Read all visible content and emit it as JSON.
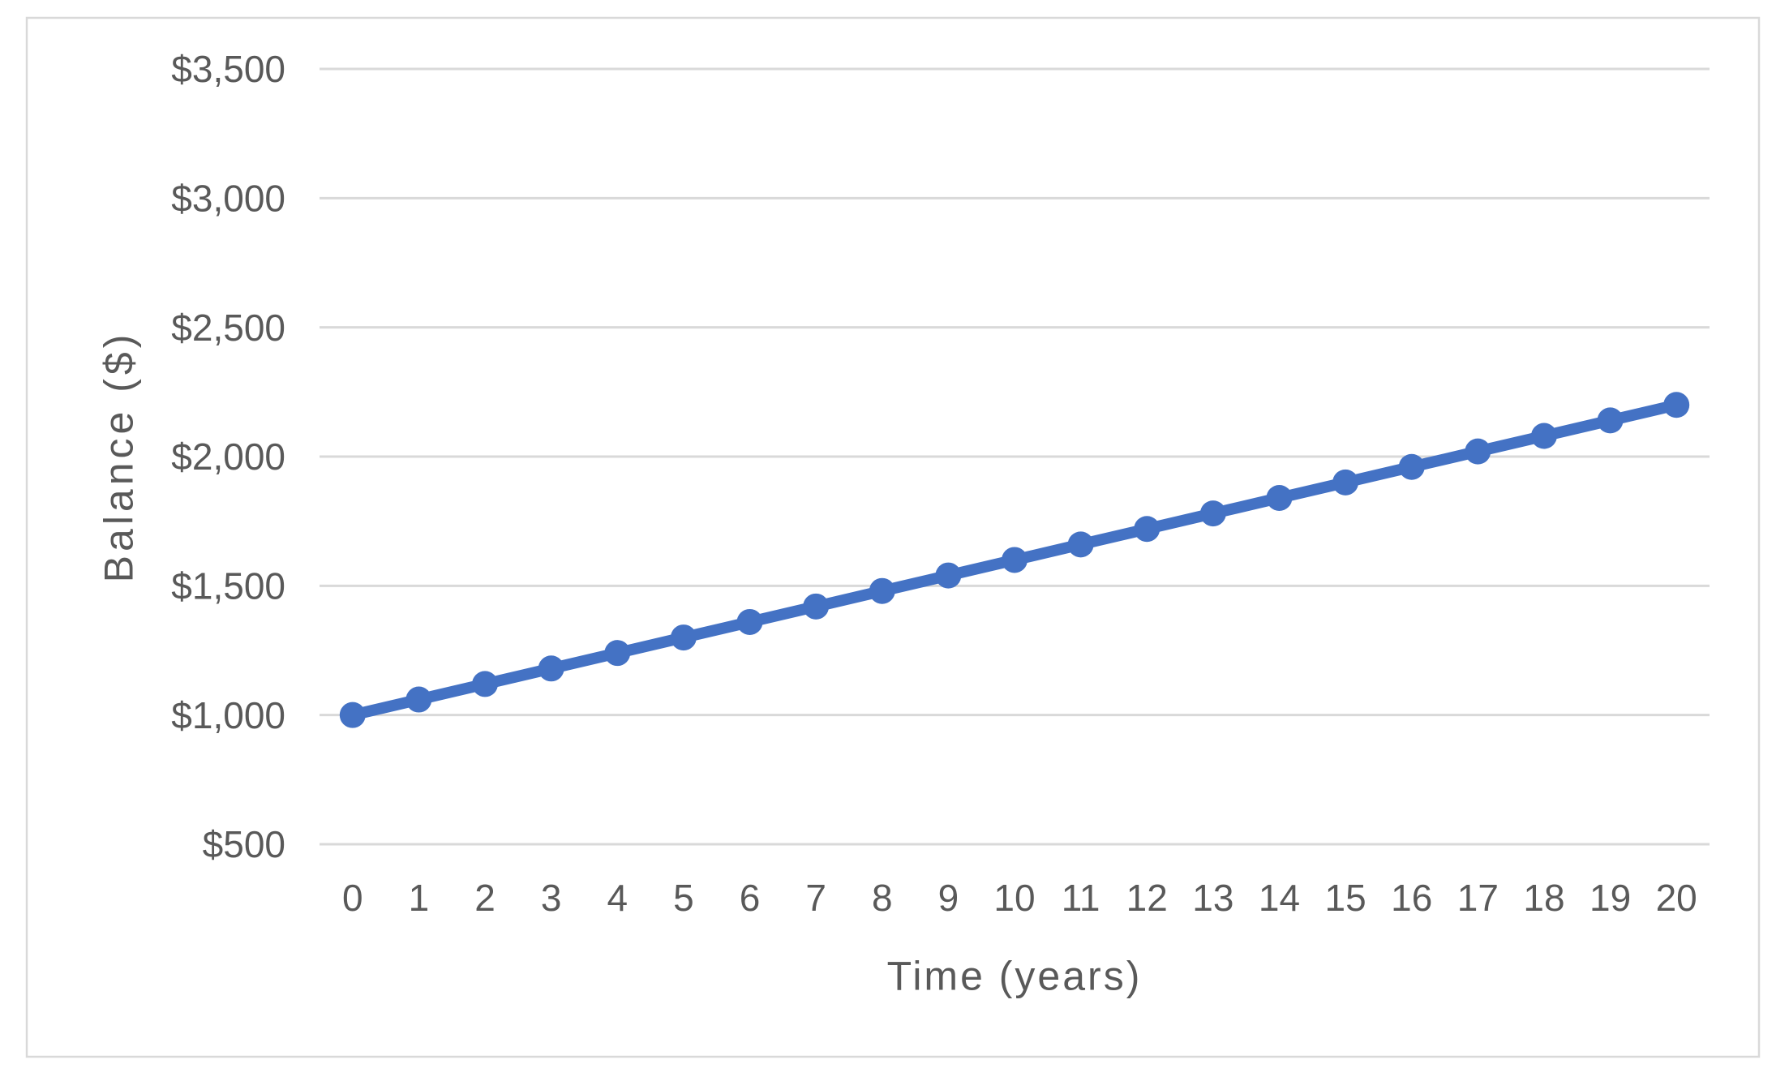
{
  "chart_data": {
    "type": "line",
    "title": "",
    "xlabel": "Time (years)",
    "ylabel": "Balance ($)",
    "x": [
      0,
      1,
      2,
      3,
      4,
      5,
      6,
      7,
      8,
      9,
      10,
      11,
      12,
      13,
      14,
      15,
      16,
      17,
      18,
      19,
      20
    ],
    "xtick_labels": [
      "0",
      "1",
      "2",
      "3",
      "4",
      "5",
      "6",
      "7",
      "8",
      "9",
      "10",
      "11",
      "12",
      "13",
      "14",
      "15",
      "16",
      "17",
      "18",
      "19",
      "20"
    ],
    "series": [
      {
        "name": "Balance",
        "values": [
          1000,
          1060,
          1120,
          1180,
          1240,
          1300,
          1360,
          1420,
          1480,
          1540,
          1600,
          1660,
          1720,
          1780,
          1840,
          1900,
          1960,
          2020,
          2080,
          2140,
          2200
        ]
      }
    ],
    "ylim": [
      500,
      3500
    ],
    "ytick_step": 500,
    "ytick_labels": [
      "$500",
      "$1,000",
      "$1,500",
      "$2,000",
      "$2,500",
      "$3,000",
      "$3,500"
    ],
    "grid": "horizontal",
    "legend": "none",
    "marker": "circle",
    "colors": {
      "line": "#4472C4",
      "gridline": "#D9D9D9",
      "axis_line": "#D9D9D9",
      "text": "#595959",
      "border": "#D9D9D9",
      "background": "#FFFFFF"
    }
  }
}
